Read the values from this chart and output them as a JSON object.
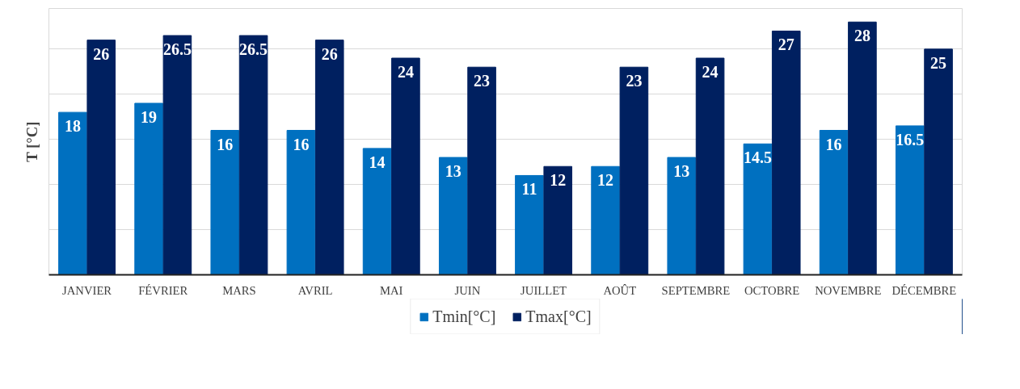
{
  "chart_data": {
    "type": "bar",
    "ylabel": "T [°C]",
    "categories": [
      "JANVIER",
      "FÉVRIER",
      "MARS",
      "AVRIL",
      "MAI",
      "JUIN",
      "JUILLET",
      "AOÛT",
      "SEPTEMBRE",
      "OCTOBRE",
      "NOVEMBRE",
      "DÉCEMBRE"
    ],
    "series": [
      {
        "name": "Tmin[°C]",
        "color": "#0070c0",
        "values": [
          18,
          19,
          16,
          16,
          14,
          13,
          11,
          12,
          13,
          14.5,
          16,
          16.5
        ]
      },
      {
        "name": "Tmax[°C]",
        "color": "#002060",
        "values": [
          26,
          26.5,
          26.5,
          26,
          24,
          23,
          12,
          23,
          24,
          27,
          28,
          25
        ]
      }
    ],
    "ylim": [
      0,
      29.5
    ],
    "yticks": [
      {
        "value": 0,
        "label": null
      },
      {
        "value": 5,
        "label": null
      },
      {
        "value": 10,
        "label": null
      },
      {
        "value": 15,
        "label": null
      },
      {
        "value": 20,
        "label": null
      },
      {
        "value": 25,
        "label": null
      }
    ],
    "grid": "y",
    "tick_labels": "x",
    "data_labels": true,
    "legend": "bottom"
  }
}
